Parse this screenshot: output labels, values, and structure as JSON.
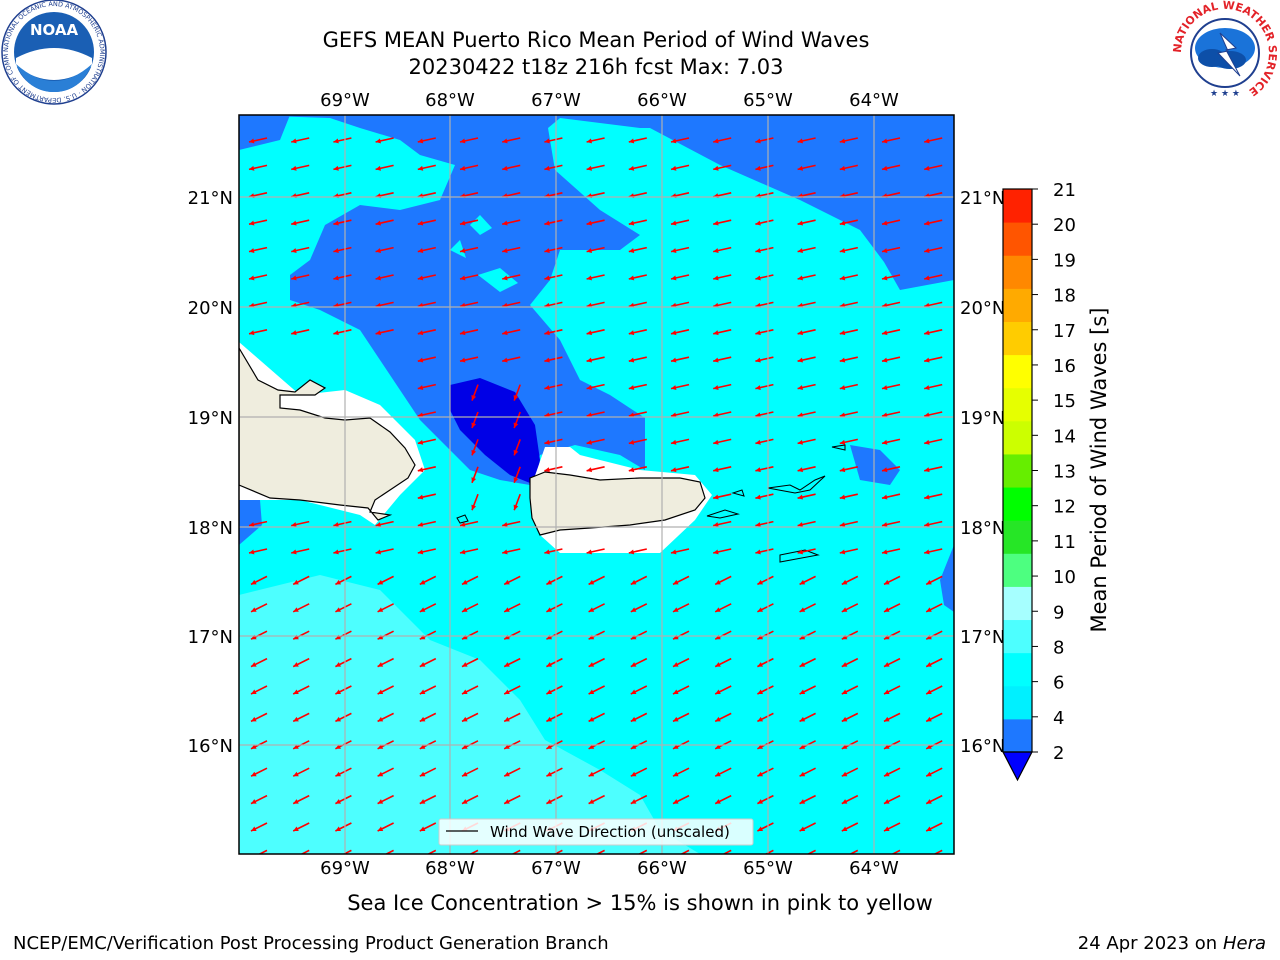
{
  "header": {
    "title": "GEFS MEAN Puerto Rico Mean Period of Wind Waves",
    "subtitle": "20230422 t18z 216h fcst   Max: 7.03"
  },
  "logos": {
    "left": "NOAA",
    "left_ring": "NATIONAL OCEANIC AND ATMOSPHERIC ADMINISTRATION · U.S. DEPARTMENT OF COMMERCE",
    "right_ring": "NATIONAL WEATHER SERVICE"
  },
  "map": {
    "lon_labels": [
      "69°W",
      "68°W",
      "67°W",
      "66°W",
      "65°W",
      "64°W"
    ],
    "lat_labels": [
      "21°N",
      "20°N",
      "19°N",
      "18°N",
      "17°N",
      "16°N"
    ],
    "legend": "Wind Wave Direction (unscaled)",
    "colors": {
      "ocean_cyan": "#00ffff",
      "light_cyan": "#4dffff",
      "blue": "#1e78ff",
      "dark_blue": "#0000e6",
      "land": "#efedde",
      "arrows": "#ff0000"
    }
  },
  "colorbar": {
    "label": "Mean Period of Wind Waves [s]",
    "ticks": [
      "2",
      "4",
      "6",
      "8",
      "9",
      "10",
      "11",
      "12",
      "13",
      "14",
      "15",
      "16",
      "17",
      "18",
      "19",
      "20",
      "21"
    ],
    "colors": [
      "#1e78ff",
      "#00f0ff",
      "#00ffff",
      "#4dffff",
      "#a6ffff",
      "#4dff80",
      "#26e626",
      "#00ff00",
      "#66ee00",
      "#ccff00",
      "#e6ff00",
      "#ffff00",
      "#ffcc00",
      "#ffaa00",
      "#ff8800",
      "#ff5500",
      "#ff2200",
      "#ff0000"
    ],
    "under_color": "#0000ff"
  },
  "footer": {
    "ice_note": "Sea Ice Concentration > 15% is shown in pink to yellow",
    "credit": "NCEP/EMC/Verification Post Processing Product Generation Branch",
    "date": "24 Apr 2023 on ",
    "machine": "Hera"
  }
}
